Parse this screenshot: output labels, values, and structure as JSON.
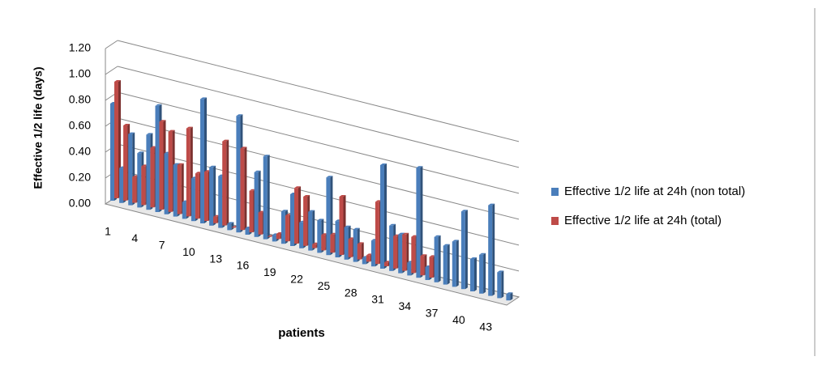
{
  "chart_data": {
    "type": "bar3d",
    "y_label": "Effective 1/2 life (days)",
    "x_label": "patients",
    "categories": [
      "1",
      null,
      null,
      "4",
      null,
      null,
      "7",
      null,
      null,
      "10",
      null,
      null,
      "13",
      null,
      null,
      "16",
      null,
      null,
      "19",
      null,
      null,
      "22",
      null,
      null,
      "25",
      null,
      null,
      "28",
      null,
      null,
      "31",
      null,
      null,
      "34",
      null,
      null,
      "37",
      null,
      null,
      "40",
      null,
      null,
      "43",
      null,
      null
    ],
    "series": [
      {
        "name": "Effective 1/2 life at 24h (non total)",
        "color": "#4a7ebb",
        "values": [
          0.75,
          0.27,
          0.55,
          0.42,
          0.58,
          0.82,
          0.47,
          0.4,
          0.13,
          0.33,
          0.96,
          0.45,
          0.4,
          0.05,
          0.9,
          0.05,
          0.5,
          0.64,
          0.05,
          0.25,
          0.4,
          0.2,
          0.3,
          0.25,
          0.6,
          0.28,
          0.25,
          0.25,
          0.05,
          0.2,
          0.8,
          0.35,
          0.3,
          0.1,
          0.85,
          0.1,
          0.35,
          0.3,
          0.35,
          0.6,
          0.25,
          0.3,
          0.7,
          0.2,
          0.05
        ]
      },
      {
        "name": "Effective 1/2 life at 24h (total)",
        "color": "#be4b48",
        "values": [
          0.9,
          0.58,
          0.2,
          0.3,
          0.46,
          0.68,
          0.62,
          0.38,
          0.68,
          0.35,
          0.38,
          0.05,
          0.65,
          0.0,
          0.63,
          0.32,
          0.17,
          0.0,
          0.04,
          0.2,
          0.43,
          0.38,
          0.03,
          0.12,
          0.14,
          0.45,
          0.14,
          0.12,
          0.05,
          0.48,
          0.03,
          0.25,
          0.28,
          0.28,
          0.15,
          0.16,
          null,
          null,
          null,
          null,
          null,
          null,
          null,
          null,
          null
        ]
      }
    ],
    "ylim": [
      0,
      1.2
    ],
    "yticks": [
      {
        "value": 0,
        "label": "0.00"
      },
      {
        "value": 0.2,
        "label": "0.20"
      },
      {
        "value": 0.4,
        "label": "0.40"
      },
      {
        "value": 0.6,
        "label": "0.60"
      },
      {
        "value": 0.8,
        "label": "0.80"
      },
      {
        "value": 1.0,
        "label": "1.00"
      },
      {
        "value": 1.2,
        "label": "1.20"
      }
    ],
    "grid": true
  }
}
